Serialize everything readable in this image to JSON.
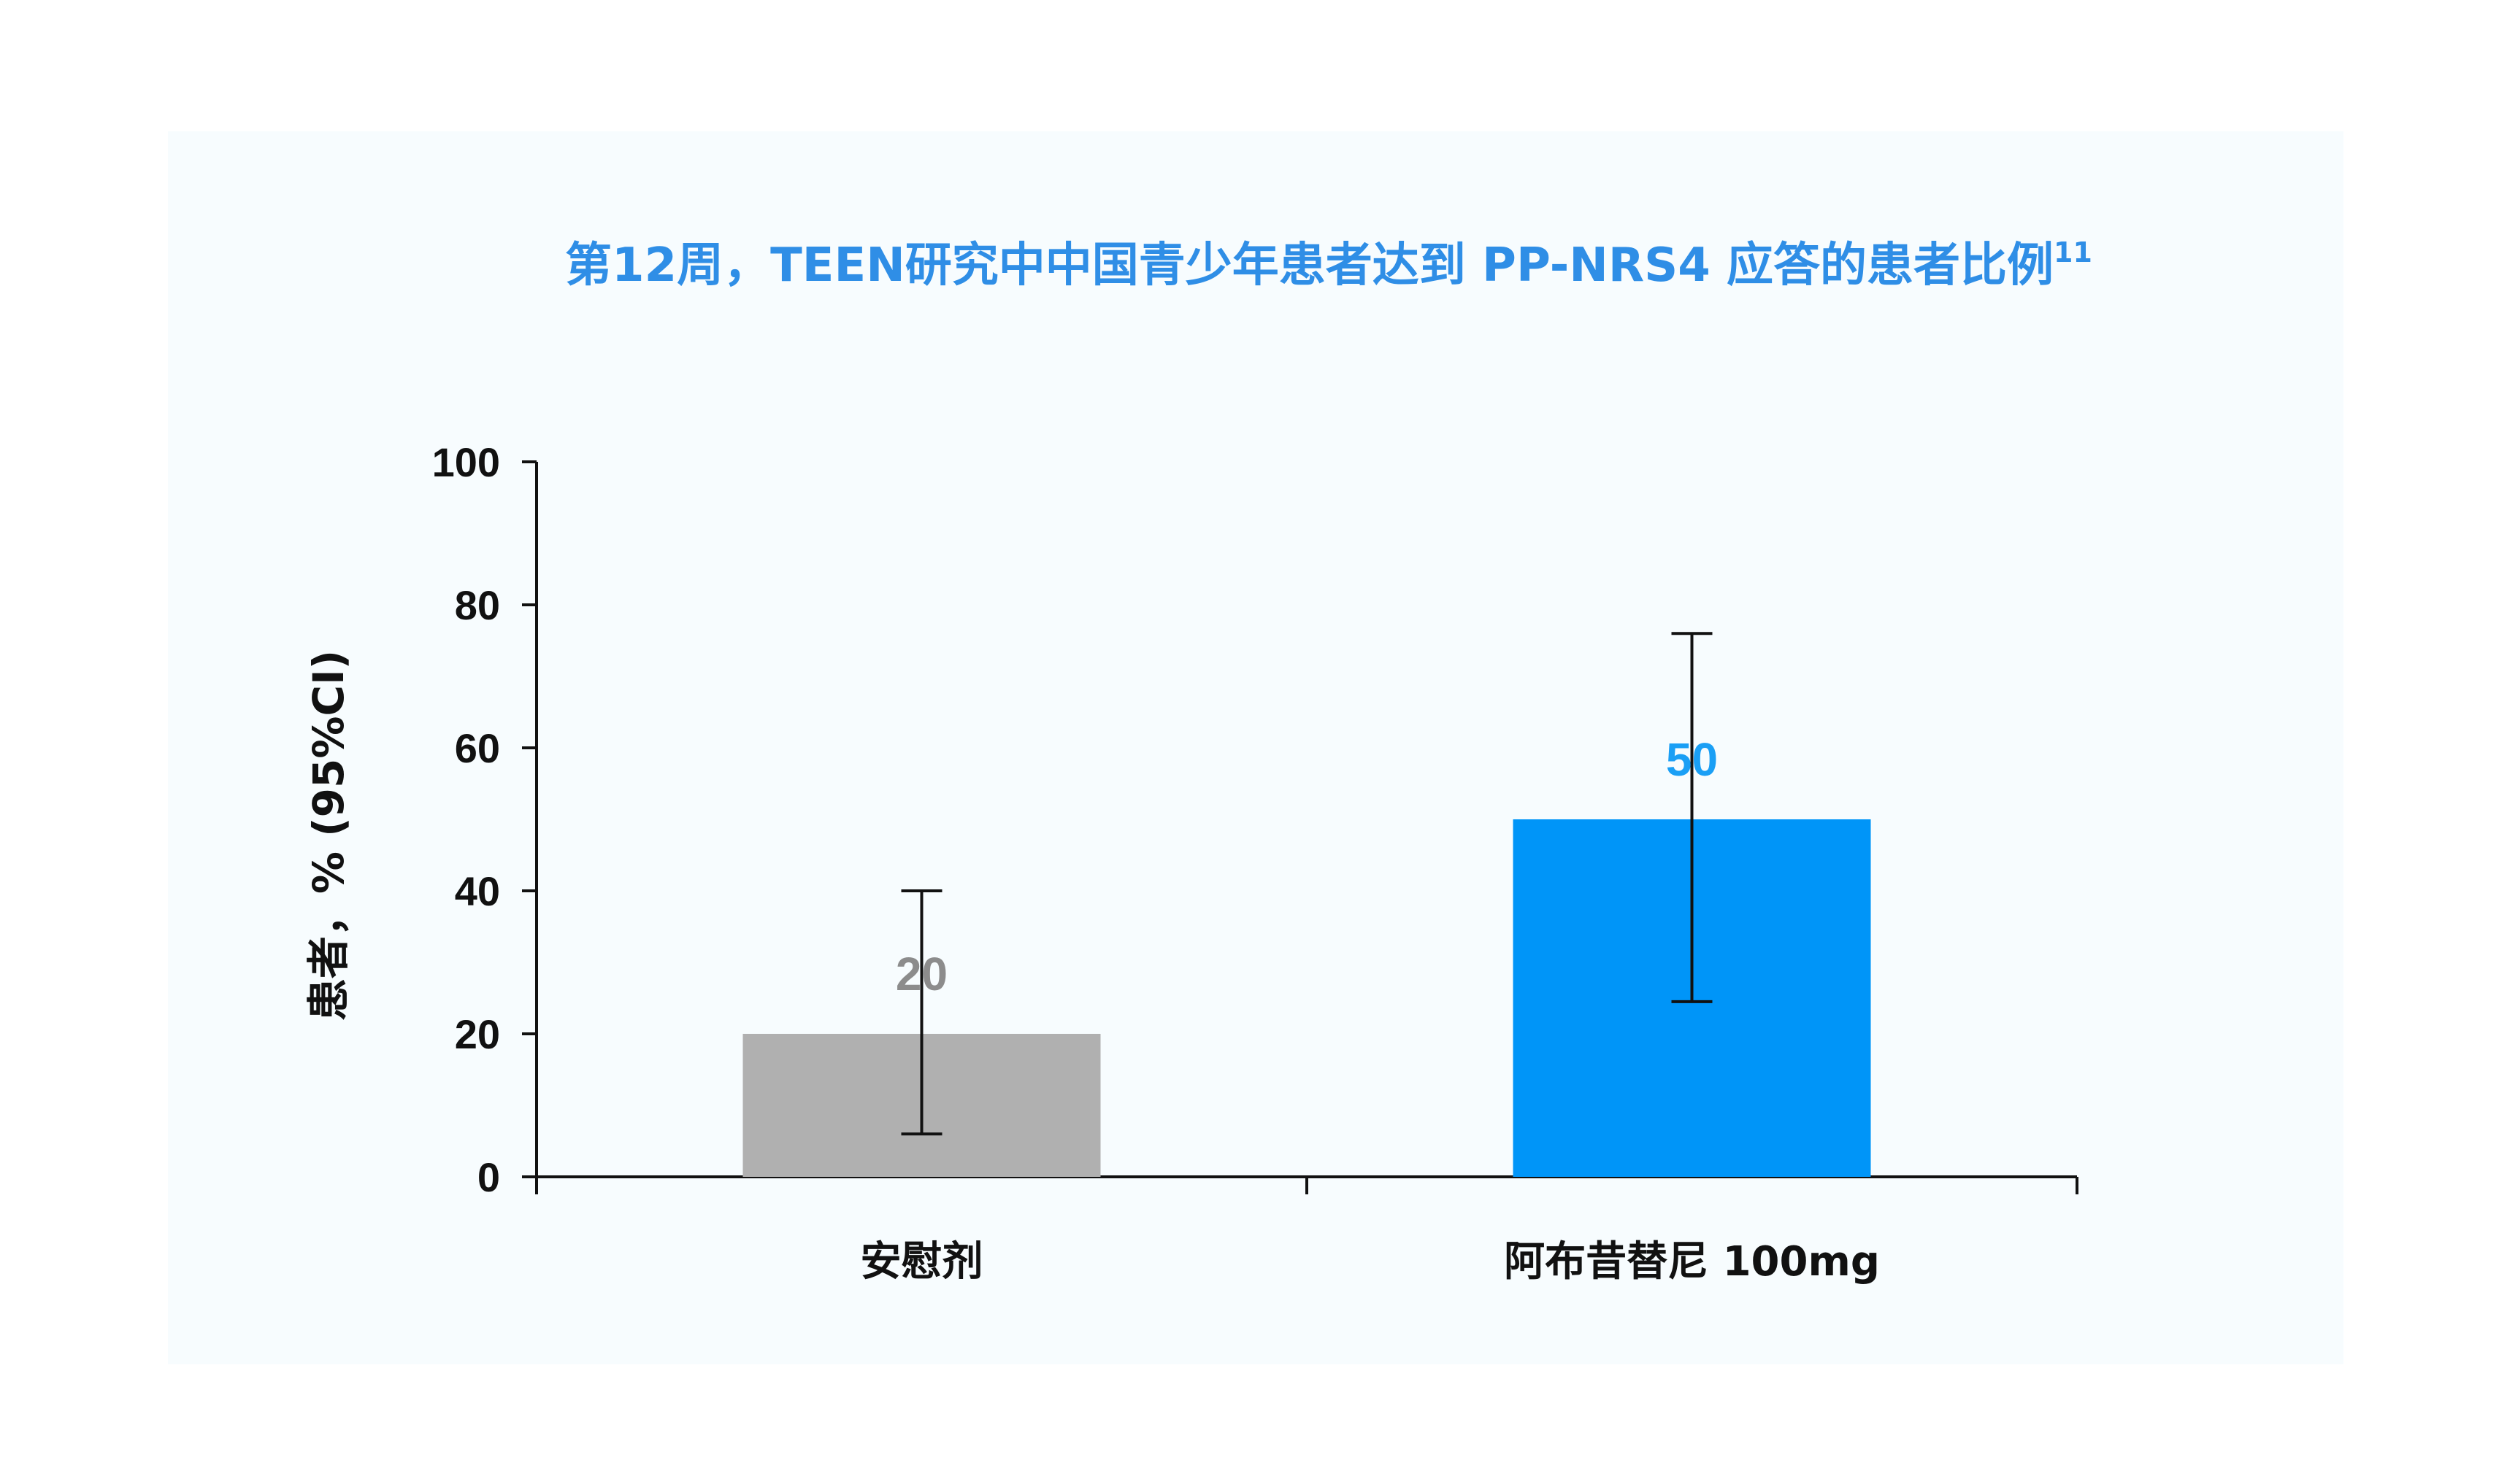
{
  "colors": {
    "title": "#2f8ee6",
    "placebo_bar": "#b0b0b0",
    "placebo_label": "#8c8c8c",
    "treatment_bar": "#0095f8",
    "treatment_label": "#1a9ff5",
    "axis": "#111111",
    "panel_background": "#f7fcfe"
  },
  "chart_data": {
    "type": "bar",
    "title": "第12周，TEEN研究中中国青少年患者达到 PP-NRS4 应答的患者比例",
    "title_superscript": "11",
    "ylabel": "患者，% (95%CI)",
    "xlabel": "",
    "ylim": [
      0,
      100
    ],
    "yticks": [
      0,
      20,
      40,
      60,
      80,
      100
    ],
    "ytick_labels": [
      "0",
      "20",
      "40",
      "60",
      "80",
      "100"
    ],
    "grid": false,
    "legend": "none",
    "categories": [
      "安慰剂",
      "阿布昔替尼 100mg"
    ],
    "values": [
      20,
      50
    ],
    "data_labels": [
      "20",
      "50"
    ],
    "ci_lower": [
      6,
      24.5
    ],
    "ci_upper": [
      40,
      76
    ]
  }
}
